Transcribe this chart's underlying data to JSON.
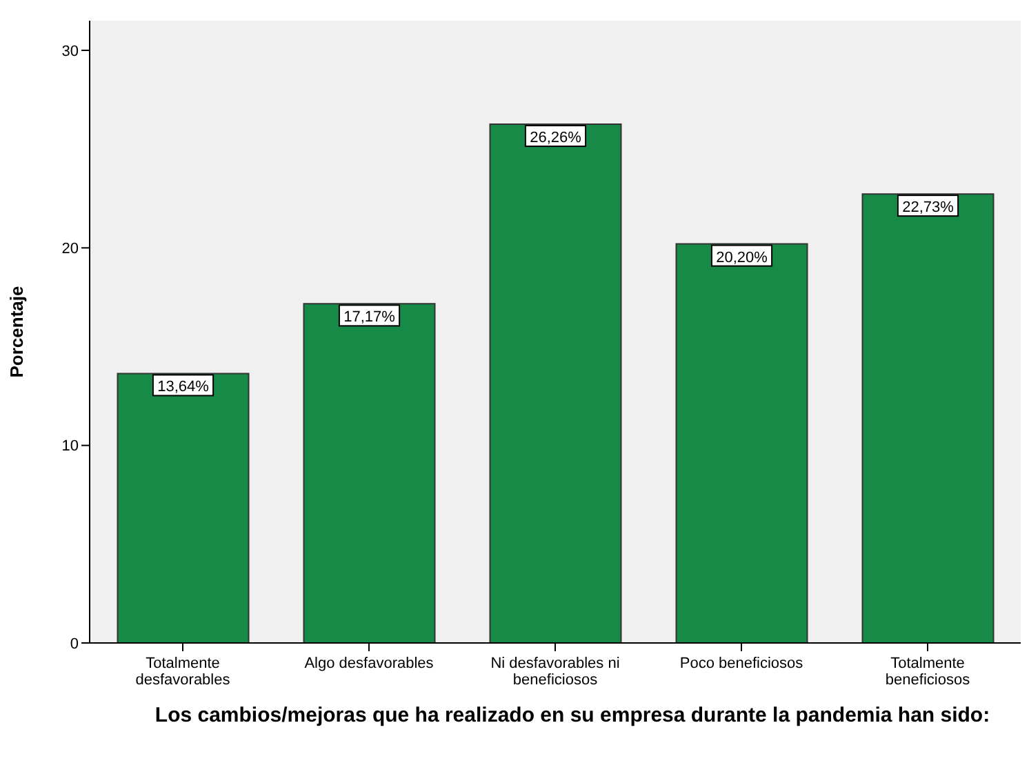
{
  "chart_data": {
    "type": "bar",
    "xlabel": "Los cambios/mejoras que ha realizado en su empresa durante la pandemia han sido:",
    "ylabel": "Porcentaje",
    "categories": [
      "Totalmente desfavorables",
      "Algo desfavorables",
      "Ni desfavorables ni beneficiosos",
      "Poco beneficiosos",
      "Totalmente beneficiosos"
    ],
    "values": [
      13.64,
      17.17,
      26.26,
      20.2,
      22.73
    ],
    "value_labels": [
      "13,64%",
      "17,17%",
      "26,26%",
      "20,20%",
      "22,73%"
    ],
    "color": "#168a46",
    "ylim": [
      0,
      31.5
    ],
    "yticks": [
      0,
      10,
      20,
      30
    ],
    "grid": false
  }
}
